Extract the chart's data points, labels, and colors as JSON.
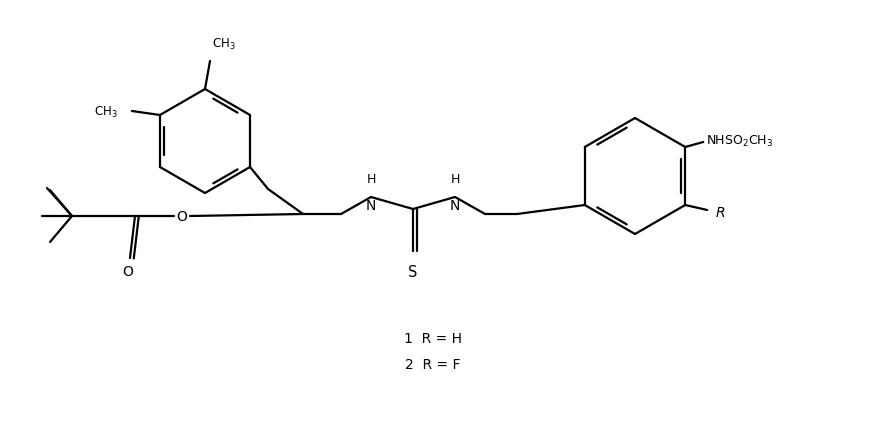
{
  "background_color": "#ffffff",
  "line_color": "#000000",
  "line_width": 1.6,
  "figsize": [
    8.76,
    4.27
  ],
  "dpi": 100,
  "xlim": [
    0,
    8.76
  ],
  "ylim": [
    0,
    4.27
  ]
}
